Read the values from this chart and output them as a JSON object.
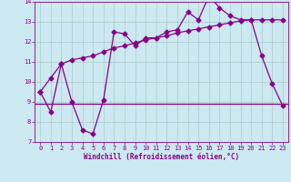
{
  "xlabel": "Windchill (Refroidissement éolien,°C)",
  "bg_color": "#cce8f0",
  "line_color": "#880088",
  "xlim": [
    -0.5,
    23.5
  ],
  "ylim": [
    7,
    14
  ],
  "yticks": [
    7,
    8,
    9,
    10,
    11,
    12,
    13,
    14
  ],
  "xticks": [
    0,
    1,
    2,
    3,
    4,
    5,
    6,
    7,
    8,
    9,
    10,
    11,
    12,
    13,
    14,
    15,
    16,
    17,
    18,
    19,
    20,
    21,
    22,
    23
  ],
  "zigzag_x": [
    0,
    1,
    2,
    3,
    4,
    5,
    6,
    7,
    8,
    9,
    10,
    11,
    12,
    13,
    14,
    15,
    16,
    17,
    18,
    19,
    20,
    21,
    22,
    23
  ],
  "zigzag_y": [
    9.5,
    8.5,
    10.9,
    9.0,
    7.6,
    7.4,
    9.1,
    12.5,
    12.4,
    11.8,
    12.2,
    12.2,
    12.5,
    12.6,
    13.5,
    13.1,
    14.3,
    13.7,
    13.3,
    13.1,
    13.1,
    11.3,
    9.9,
    8.8
  ],
  "trend_x": [
    0,
    1,
    2,
    3,
    4,
    5,
    6,
    7,
    8,
    9,
    10,
    11,
    12,
    13,
    14,
    15,
    16,
    17,
    18,
    19,
    20,
    21,
    22,
    23
  ],
  "trend_y": [
    9.5,
    10.2,
    10.9,
    11.1,
    11.2,
    11.3,
    11.5,
    11.7,
    11.8,
    11.95,
    12.1,
    12.2,
    12.3,
    12.45,
    12.55,
    12.65,
    12.75,
    12.85,
    12.95,
    13.05,
    13.1,
    13.1,
    13.1,
    13.1
  ],
  "flat_y": 8.9,
  "marker": "D",
  "markersize": 2.5,
  "linewidth": 0.9,
  "tick_fontsize": 5.0,
  "label_fontsize": 5.5
}
